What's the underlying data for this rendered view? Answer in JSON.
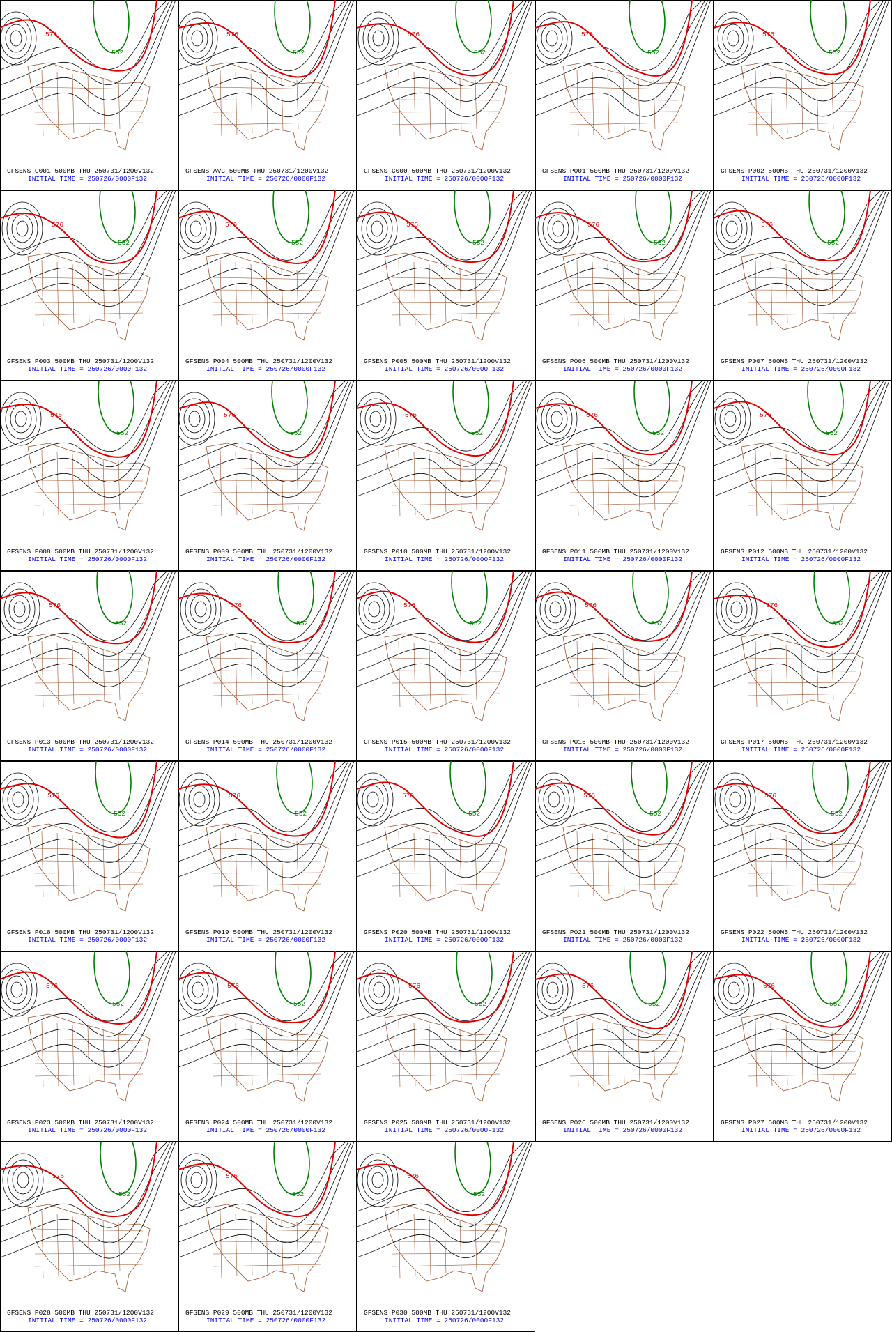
{
  "contour_labels": [
    "576",
    "552"
  ],
  "panels": [
    {
      "title": "GFSENS C001 500MB THU 250731/1200V132",
      "init": "INITIAL TIME = 250726/0000F132"
    },
    {
      "title": "GFSENS AVG 500MB THU 250731/1200V132",
      "init": "INITIAL TIME = 250726/0000F132"
    },
    {
      "title": "GFSENS C000 500MB THU 250731/1200V132",
      "init": "INITIAL TIME = 250726/0000F132"
    },
    {
      "title": "GFSENS P001 500MB THU 250731/1200V132",
      "init": "INITIAL TIME = 250726/0000F132"
    },
    {
      "title": "GFSENS P002 500MB THU 250731/1200V132",
      "init": "INITIAL TIME = 250726/0000F132"
    },
    {
      "title": "GFSENS P003 500MB THU 250731/1200V132",
      "init": "INITIAL TIME = 250726/0000F132"
    },
    {
      "title": "GFSENS P004 500MB THU 250731/1200V132",
      "init": "INITIAL TIME = 250726/0000F132"
    },
    {
      "title": "GFSENS P005 500MB THU 250731/1200V132",
      "init": "INITIAL TIME = 250726/0000F132"
    },
    {
      "title": "GFSENS P006 500MB THU 250731/1200V132",
      "init": "INITIAL TIME = 250726/0000F132"
    },
    {
      "title": "GFSENS P007 500MB THU 250731/1200V132",
      "init": "INITIAL TIME = 250726/0000F132"
    },
    {
      "title": "GFSENS P008 500MB THU 250731/1200V132",
      "init": "INITIAL TIME = 250726/0000F132"
    },
    {
      "title": "GFSENS P009 500MB THU 250731/1200V132",
      "init": "INITIAL TIME = 250726/0000F132"
    },
    {
      "title": "GFSENS P010 500MB THU 250731/1200V132",
      "init": "INITIAL TIME = 250726/0000F132"
    },
    {
      "title": "GFSENS P011 500MB THU 250731/1200V132",
      "init": "INITIAL TIME = 250726/0000F132"
    },
    {
      "title": "GFSENS P012 500MB THU 250731/1200V132",
      "init": "INITIAL TIME = 250726/0000F132"
    },
    {
      "title": "GFSENS P013 500MB THU 250731/1200V132",
      "init": "INITIAL TIME = 250726/0000F132"
    },
    {
      "title": "GFSENS P014 500MB THU 250731/1200V132",
      "init": "INITIAL TIME = 250726/0000F132"
    },
    {
      "title": "GFSENS P015 500MB THU 250731/1200V132",
      "init": "INITIAL TIME = 250726/0000F132"
    },
    {
      "title": "GFSENS P016 500MB THU 250731/1200V132",
      "init": "INITIAL TIME = 250726/0000F132"
    },
    {
      "title": "GFSENS P017 500MB THU 250731/1200V132",
      "init": "INITIAL TIME = 250726/0000F132"
    },
    {
      "title": "GFSENS P018 500MB THU 250731/1200V132",
      "init": "INITIAL TIME = 250726/0000F132"
    },
    {
      "title": "GFSENS P019 500MB THU 250731/1200V132",
      "init": "INITIAL TIME = 250726/0000F132"
    },
    {
      "title": "GFSENS P020 500MB THU 250731/1200V132",
      "init": "INITIAL TIME = 250726/0000F132"
    },
    {
      "title": "GFSENS P021 500MB THU 250731/1200V132",
      "init": "INITIAL TIME = 250726/0000F132"
    },
    {
      "title": "GFSENS P022 500MB THU 250731/1200V132",
      "init": "INITIAL TIME = 250726/0000F132"
    },
    {
      "title": "GFSENS P023 500MB THU 250731/1200V132",
      "init": "INITIAL TIME = 250726/0000F132"
    },
    {
      "title": "GFSENS P024 500MB THU 250731/1200V132",
      "init": "INITIAL TIME = 250726/0000F132"
    },
    {
      "title": "GFSENS P025 500MB THU 250731/1200V132",
      "init": "INITIAL TIME = 250726/0000F132"
    },
    {
      "title": "GFSENS P026 500MB THU 250731/1200V132",
      "init": "INITIAL TIME = 250726/0000F132"
    },
    {
      "title": "GFSENS P027 500MB THU 250731/1200V132",
      "init": "INITIAL TIME = 250726/0000F132"
    },
    {
      "title": "GFSENS P028 500MB THU 250731/1200V132",
      "init": "INITIAL TIME = 250726/0000F132"
    },
    {
      "title": "GFSENS P029 500MB THU 250731/1200V132",
      "init": "INITIAL TIME = 250726/0000F132"
    },
    {
      "title": "GFSENS P030 500MB THU 250731/1200V132",
      "init": "INITIAL TIME = 250726/0000F132"
    }
  ]
}
